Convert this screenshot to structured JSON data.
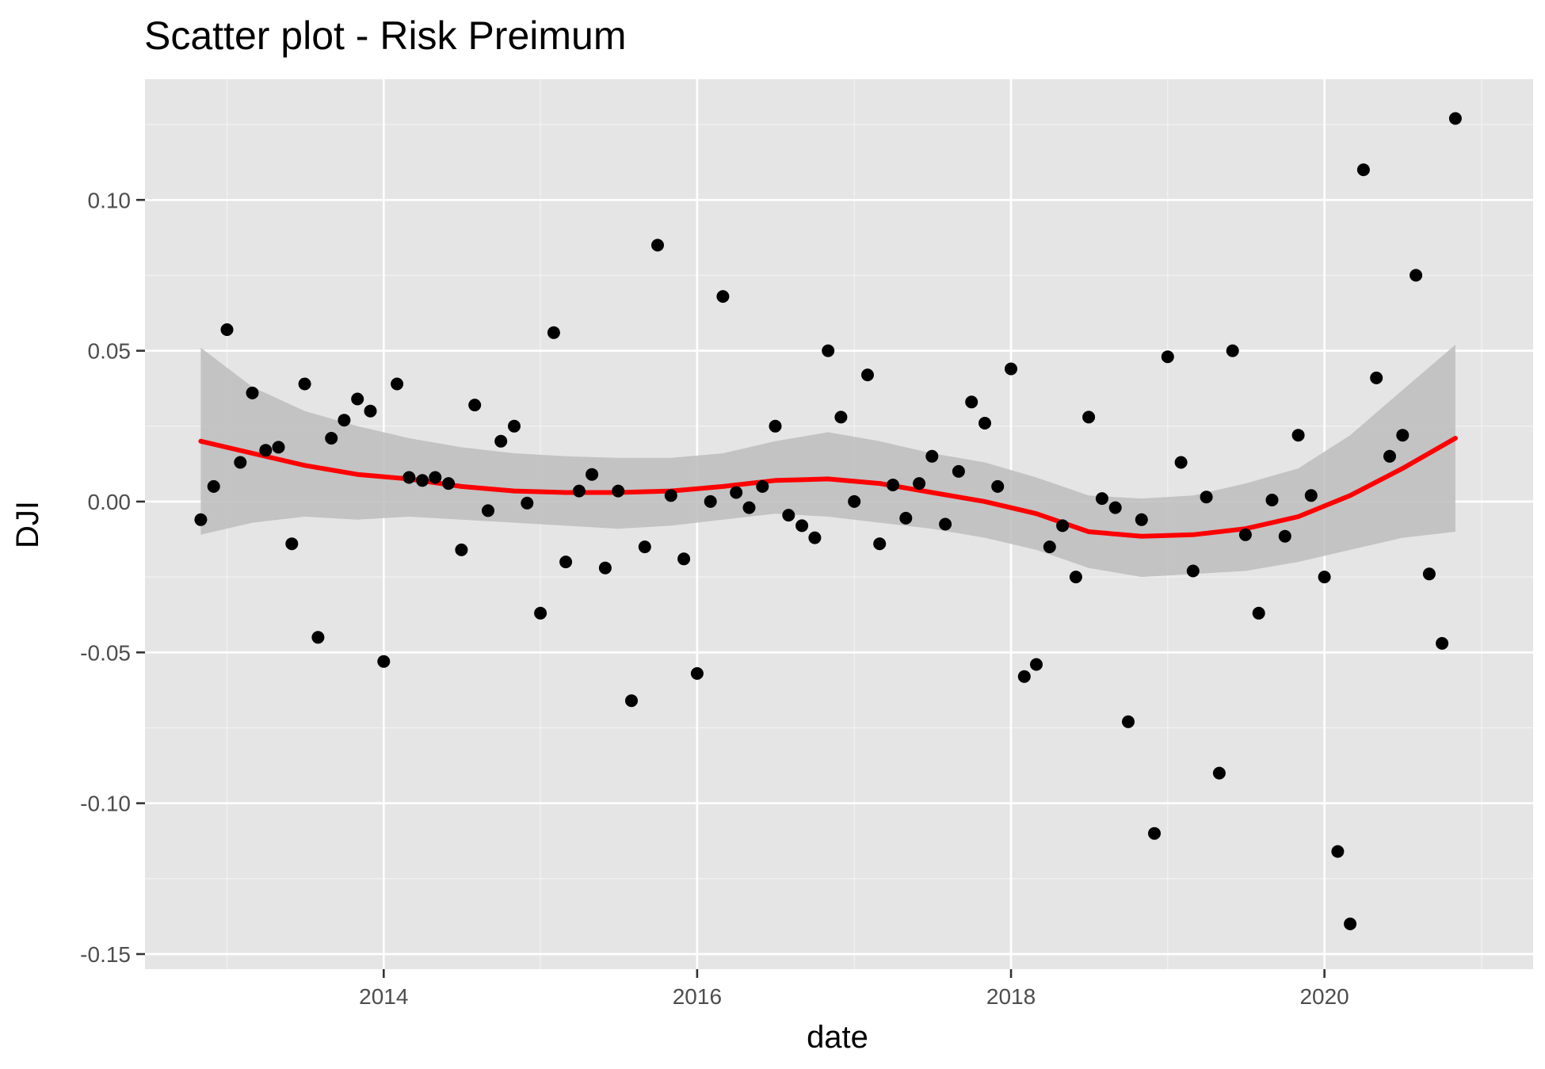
{
  "chart_data": {
    "type": "scatter",
    "title": "Scatter plot - Risk Preimum",
    "xlabel": "date",
    "ylabel": "DJI",
    "xlim": [
      "2012-06-24",
      "2021-05-01"
    ],
    "ylim": [
      -0.155,
      0.14
    ],
    "x_ticks": [
      "2014",
      "2016",
      "2018",
      "2020"
    ],
    "y_ticks": [
      {
        "value": 0.1,
        "label": "0.10"
      },
      {
        "value": 0.05,
        "label": "0.05"
      },
      {
        "value": 0.0,
        "label": "0.00"
      },
      {
        "value": -0.05,
        "label": "-0.05"
      },
      {
        "value": -0.1,
        "label": "-0.10"
      },
      {
        "value": -0.15,
        "label": "-0.15"
      }
    ],
    "grid": true,
    "background": "#e5e5e5",
    "point_color": "#000000",
    "series": [
      {
        "type": "scatter",
        "points": [
          [
            "2012-11-01",
            -0.006
          ],
          [
            "2012-12-01",
            0.005
          ],
          [
            "2013-01-01",
            0.057
          ],
          [
            "2013-02-01",
            0.013
          ],
          [
            "2013-03-01",
            0.036
          ],
          [
            "2013-04-01",
            0.017
          ],
          [
            "2013-05-01",
            0.018
          ],
          [
            "2013-06-01",
            -0.014
          ],
          [
            "2013-07-01",
            0.039
          ],
          [
            "2013-08-01",
            -0.045
          ],
          [
            "2013-09-01",
            0.021
          ],
          [
            "2013-10-01",
            0.027
          ],
          [
            "2013-11-01",
            0.034
          ],
          [
            "2013-12-01",
            0.03
          ],
          [
            "2014-01-01",
            -0.053
          ],
          [
            "2014-02-01",
            0.039
          ],
          [
            "2014-03-01",
            0.008
          ],
          [
            "2014-04-01",
            0.007
          ],
          [
            "2014-05-01",
            0.008
          ],
          [
            "2014-06-01",
            0.006
          ],
          [
            "2014-07-01",
            -0.016
          ],
          [
            "2014-08-01",
            0.032
          ],
          [
            "2014-09-01",
            -0.003
          ],
          [
            "2014-10-01",
            0.02
          ],
          [
            "2014-11-01",
            0.025
          ],
          [
            "2014-12-01",
            -0.0005
          ],
          [
            "2015-01-01",
            -0.037
          ],
          [
            "2015-02-01",
            0.056
          ],
          [
            "2015-03-01",
            -0.02
          ],
          [
            "2015-04-01",
            0.0035
          ],
          [
            "2015-05-01",
            0.009
          ],
          [
            "2015-06-01",
            -0.022
          ],
          [
            "2015-07-01",
            0.0035
          ],
          [
            "2015-08-01",
            -0.066
          ],
          [
            "2015-09-01",
            -0.015
          ],
          [
            "2015-10-01",
            0.085
          ],
          [
            "2015-11-01",
            0.002
          ],
          [
            "2015-12-01",
            -0.019
          ],
          [
            "2016-01-01",
            -0.057
          ],
          [
            "2016-02-01",
            0.0
          ],
          [
            "2016-03-01",
            0.068
          ],
          [
            "2016-04-01",
            0.003
          ],
          [
            "2016-05-01",
            -0.002
          ],
          [
            "2016-06-01",
            0.005
          ],
          [
            "2016-07-01",
            0.025
          ],
          [
            "2016-08-01",
            -0.0045
          ],
          [
            "2016-09-01",
            -0.008
          ],
          [
            "2016-10-01",
            -0.012
          ],
          [
            "2016-11-01",
            0.05
          ],
          [
            "2016-12-01",
            0.028
          ],
          [
            "2017-01-01",
            0.0
          ],
          [
            "2017-02-01",
            0.042
          ],
          [
            "2017-03-01",
            -0.014
          ],
          [
            "2017-04-01",
            0.0055
          ],
          [
            "2017-05-01",
            -0.0055
          ],
          [
            "2017-06-01",
            0.006
          ],
          [
            "2017-07-01",
            0.015
          ],
          [
            "2017-08-01",
            -0.0075
          ],
          [
            "2017-09-01",
            0.01
          ],
          [
            "2017-10-01",
            0.033
          ],
          [
            "2017-11-01",
            0.026
          ],
          [
            "2017-12-01",
            0.005
          ],
          [
            "2018-01-01",
            0.044
          ],
          [
            "2018-02-01",
            -0.058
          ],
          [
            "2018-03-01",
            -0.054
          ],
          [
            "2018-04-01",
            -0.015
          ],
          [
            "2018-05-01",
            -0.008
          ],
          [
            "2018-06-01",
            -0.025
          ],
          [
            "2018-07-01",
            0.028
          ],
          [
            "2018-08-01",
            0.001
          ],
          [
            "2018-09-01",
            -0.002
          ],
          [
            "2018-10-01",
            -0.073
          ],
          [
            "2018-11-01",
            -0.006
          ],
          [
            "2018-12-01",
            -0.11
          ],
          [
            "2019-01-01",
            0.048
          ],
          [
            "2019-02-01",
            0.013
          ],
          [
            "2019-03-01",
            -0.023
          ],
          [
            "2019-04-01",
            0.0015
          ],
          [
            "2019-05-01",
            -0.09
          ],
          [
            "2019-06-01",
            0.05
          ],
          [
            "2019-07-01",
            -0.011
          ],
          [
            "2019-08-01",
            -0.037
          ],
          [
            "2019-09-01",
            0.0005
          ],
          [
            "2019-10-01",
            -0.0115
          ],
          [
            "2019-11-01",
            0.022
          ],
          [
            "2019-12-01",
            0.002
          ],
          [
            "2020-01-01",
            -0.025
          ],
          [
            "2020-02-01",
            -0.116
          ],
          [
            "2020-03-01",
            -0.14
          ],
          [
            "2020-04-01",
            0.11
          ],
          [
            "2020-05-01",
            0.041
          ],
          [
            "2020-06-01",
            0.015
          ],
          [
            "2020-07-01",
            0.022
          ],
          [
            "2020-08-01",
            0.075
          ],
          [
            "2020-09-01",
            -0.024
          ],
          [
            "2020-10-01",
            -0.047
          ],
          [
            "2020-11-01",
            0.127
          ]
        ]
      },
      {
        "type": "smooth",
        "color": "#ff0000",
        "band_color": "#bdbdbd",
        "points": [
          [
            "2012-11-01",
            0.02,
            -0.011,
            0.051
          ],
          [
            "2013-03-01",
            0.016,
            -0.007,
            0.038
          ],
          [
            "2013-07-01",
            0.012,
            -0.005,
            0.03
          ],
          [
            "2013-11-01",
            0.009,
            -0.006,
            0.025
          ],
          [
            "2014-03-01",
            0.0075,
            -0.005,
            0.021
          ],
          [
            "2014-07-01",
            0.005,
            -0.006,
            0.018
          ],
          [
            "2014-11-01",
            0.0035,
            -0.007,
            0.016
          ],
          [
            "2015-03-01",
            0.003,
            -0.008,
            0.015
          ],
          [
            "2015-07-01",
            0.003,
            -0.009,
            0.0145
          ],
          [
            "2015-11-01",
            0.0035,
            -0.008,
            0.0145
          ],
          [
            "2016-03-01",
            0.005,
            -0.006,
            0.016
          ],
          [
            "2016-07-01",
            0.007,
            -0.004,
            0.02
          ],
          [
            "2016-11-01",
            0.0075,
            -0.005,
            0.023
          ],
          [
            "2017-03-01",
            0.006,
            -0.007,
            0.02
          ],
          [
            "2017-07-01",
            0.003,
            -0.009,
            0.016
          ],
          [
            "2017-11-01",
            0.0,
            -0.012,
            0.013
          ],
          [
            "2018-03-01",
            -0.004,
            -0.016,
            0.008
          ],
          [
            "2018-07-01",
            -0.01,
            -0.022,
            0.002
          ],
          [
            "2018-11-01",
            -0.0115,
            -0.025,
            0.001
          ],
          [
            "2019-03-01",
            -0.011,
            -0.024,
            0.002
          ],
          [
            "2019-07-01",
            -0.009,
            -0.023,
            0.006
          ],
          [
            "2019-11-01",
            -0.005,
            -0.02,
            0.011
          ],
          [
            "2020-03-01",
            0.002,
            -0.016,
            0.022
          ],
          [
            "2020-07-01",
            0.011,
            -0.012,
            0.037
          ],
          [
            "2020-11-01",
            0.021,
            -0.01,
            0.052
          ]
        ]
      }
    ]
  }
}
